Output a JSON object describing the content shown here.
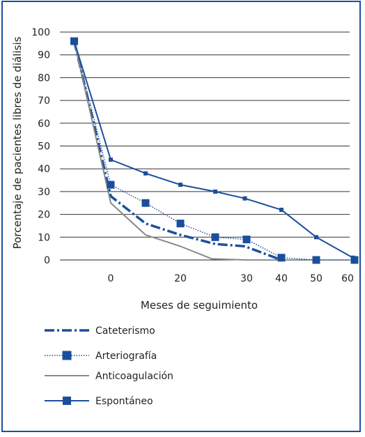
{
  "chart_data": {
    "type": "line",
    "xlabel": "Meses de seguimiento",
    "ylabel": "Porcentaje de pacientes libres de diálisis",
    "ylim": [
      0,
      100
    ],
    "grid": "horizontal",
    "legend_placement": "bottom",
    "y_ticks": [
      "0",
      "10",
      "20",
      "30",
      "40",
      "50",
      "60",
      "70",
      "80",
      "90",
      "100"
    ],
    "x_ticks": [
      {
        "label": "0",
        "pos": 0
      },
      {
        "label": "20",
        "pos": 20
      },
      {
        "label": "30",
        "pos": 39
      },
      {
        "label": "40",
        "pos": 49
      },
      {
        "label": "50",
        "pos": 59
      },
      {
        "label": "60",
        "pos": 68
      }
    ],
    "series": [
      {
        "name": "Cateterismo",
        "color": "#1b4f9c",
        "dash": "14,4,3,4",
        "width": 3.5,
        "marker": "none",
        "x": [
          -10.5,
          0,
          10,
          20,
          30,
          38.5,
          49
        ],
        "y": [
          96,
          28,
          16,
          11,
          7,
          6,
          0
        ]
      },
      {
        "name": "Arteriografía",
        "color": "#1b4f9c",
        "dash": "1.5,2",
        "width": 1.5,
        "marker": "square",
        "marker_size": 11,
        "x": [
          -10.5,
          0,
          10,
          20,
          30,
          39,
          49,
          59,
          70
        ],
        "y": [
          96,
          33,
          25,
          16,
          10,
          9,
          1,
          0,
          0
        ]
      },
      {
        "name": "Anticoagulación",
        "color": "#888888",
        "dash": "",
        "width": 2,
        "marker": "none",
        "x": [
          -10.5,
          0,
          10,
          20,
          29,
          39
        ],
        "y": [
          96,
          25,
          11,
          6,
          0.5,
          0
        ]
      },
      {
        "name": "Espontáneo",
        "color": "#1b4f9c",
        "dash": "",
        "width": 2,
        "marker": "square",
        "marker_size": 6,
        "x": [
          -10.5,
          0,
          10,
          20,
          30,
          38.5,
          49,
          59,
          69.5
        ],
        "y": [
          96,
          44,
          38,
          33,
          30,
          27,
          22,
          10,
          1
        ]
      }
    ]
  }
}
